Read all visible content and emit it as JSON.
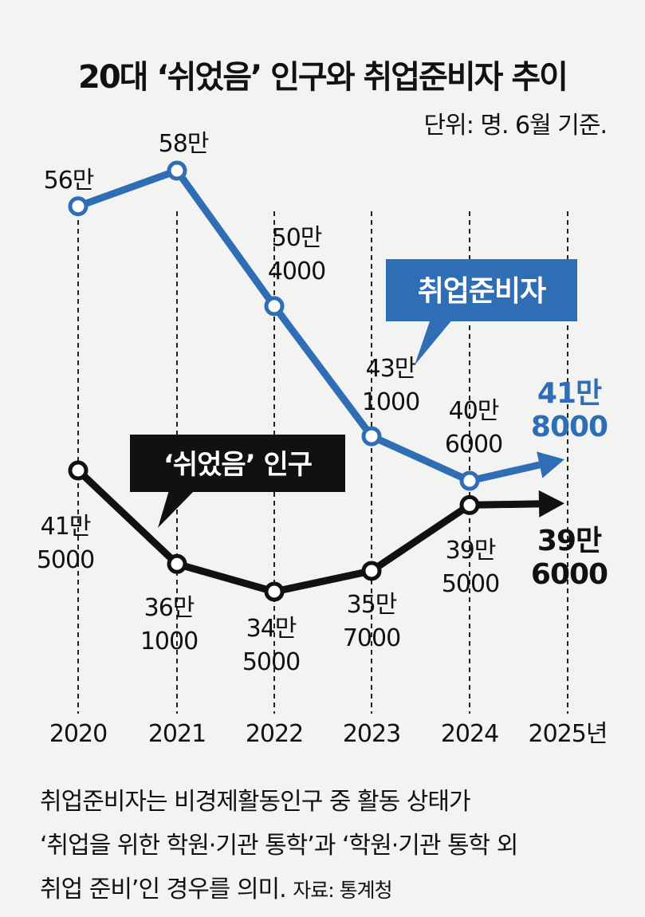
{
  "title": "20대 ‘쉬었음’ 인구와 취업준비자 추이",
  "unit_note": "단위: 명. 6월 기준.",
  "footnote": {
    "line1": "취업준비자는 비경제활동인구 중 활동 상태가",
    "line2": "‘취업을 위한 학원·기관 통학’과 ‘학원·기관 통학 외",
    "line3": "취업 준비’인 경우를 의미.",
    "source": "자료: 통계청"
  },
  "colors": {
    "blue": "#2f6eb5",
    "black": "#111111",
    "background": "#f3f3f1"
  },
  "chart_data": {
    "type": "line",
    "categories": [
      "2020",
      "2021",
      "2022",
      "2023",
      "2024",
      "2025년"
    ],
    "series": [
      {
        "name": "취업준비자",
        "color": "#2f6eb5",
        "values": [
          560000,
          580000,
          504000,
          431000,
          406000,
          418000
        ],
        "labels": [
          [
            "56만"
          ],
          [
            "58만"
          ],
          [
            "50만",
            "4000"
          ],
          [
            "43만",
            "1000"
          ],
          [
            "40만",
            "6000"
          ],
          [
            "41만",
            "8000"
          ]
        ]
      },
      {
        "name": "‘쉬었음’ 인구",
        "color": "#111111",
        "values": [
          415000,
          361000,
          345000,
          357000,
          395000,
          396000
        ],
        "labels": [
          [
            "41만",
            "5000"
          ],
          [
            "36만",
            "1000"
          ],
          [
            "34만",
            "5000"
          ],
          [
            "35만",
            "7000"
          ],
          [
            "39만",
            "5000"
          ],
          [
            "39만",
            "6000"
          ]
        ]
      }
    ],
    "last_point_style": "arrow",
    "gridlines": "vertical dashed per year",
    "legend": "callout boxes"
  }
}
